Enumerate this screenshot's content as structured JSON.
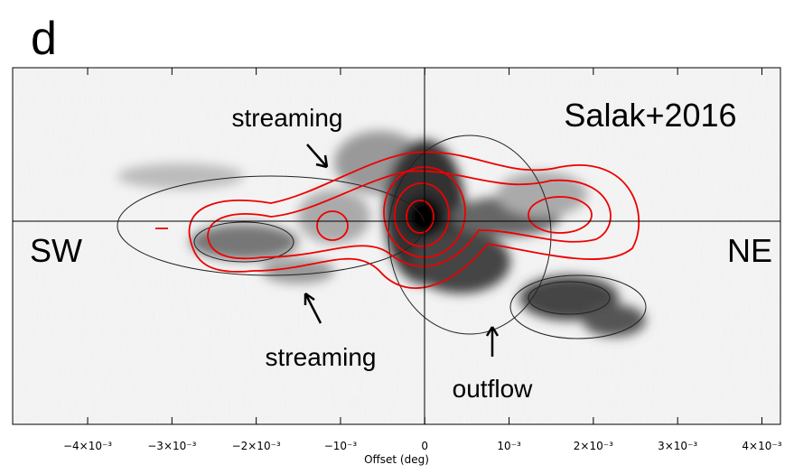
{
  "figure": {
    "panel_label": "d",
    "x_label": "Offset (deg)",
    "xlim": [
      -0.00489,
      0.00422
    ],
    "xticks": [
      {
        "value": -0.004,
        "label": "−4×10⁻³"
      },
      {
        "value": -0.003,
        "label": "−3×10⁻³"
      },
      {
        "value": -0.002,
        "label": "−2×10⁻³"
      },
      {
        "value": -0.001,
        "label": "−10⁻³"
      },
      0,
      {
        "value": 0.001,
        "label": "10⁻³"
      },
      {
        "value": 0.002,
        "label": "2×10⁻³"
      },
      {
        "value": 0.003,
        "label": "3×10⁻³"
      },
      {
        "value": 0.004,
        "label": "4×10⁻³"
      }
    ],
    "annotations": {
      "reference": "Salak+2016",
      "left_side": "SW",
      "right_side": "NE",
      "streaming_top": "streaming",
      "streaming_bottom": "streaming",
      "outflow": "outflow"
    }
  }
}
